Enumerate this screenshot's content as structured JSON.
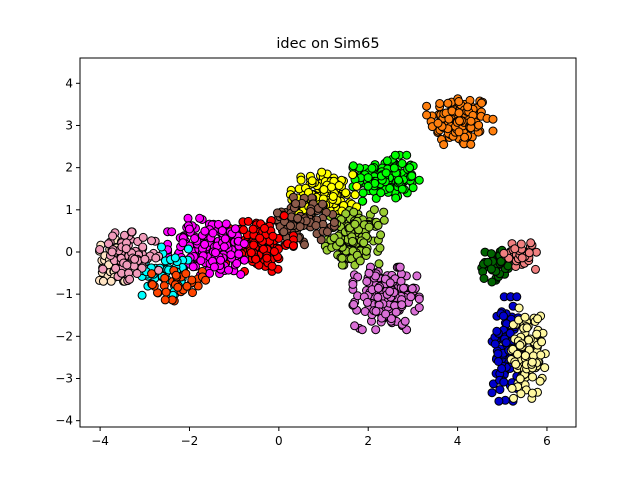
{
  "chart_data": {
    "type": "scatter",
    "title": "idec on Sim65",
    "xlabel": "",
    "ylabel": "",
    "xlim": [
      -4.45,
      6.65
    ],
    "ylim": [
      -4.15,
      4.6
    ],
    "xticks": [
      -4,
      -2,
      0,
      2,
      4,
      6
    ],
    "yticks": [
      -4,
      -3,
      -2,
      -1,
      0,
      1,
      2,
      3,
      4
    ],
    "grid": false,
    "legend": "none",
    "marker_edge_color": "#000000",
    "clusters": [
      {
        "color": "#ff7f0e",
        "center": [
          4.05,
          3.1
        ],
        "spread": [
          0.45,
          0.42
        ],
        "n": 130
      },
      {
        "color": "#00ff00",
        "center": [
          2.4,
          1.75
        ],
        "spread": [
          0.45,
          0.33
        ],
        "n": 150
      },
      {
        "color": "#ffff00",
        "center": [
          1.0,
          1.35
        ],
        "spread": [
          0.45,
          0.33
        ],
        "n": 130
      },
      {
        "color": "#9acd32",
        "center": [
          1.7,
          0.35
        ],
        "spread": [
          0.4,
          0.4
        ],
        "n": 140
      },
      {
        "color": "#8b5a4a",
        "center": [
          0.5,
          0.75
        ],
        "spread": [
          0.45,
          0.35
        ],
        "n": 90
      },
      {
        "color": "#da70d6",
        "center": [
          2.4,
          -1.1
        ],
        "spread": [
          0.45,
          0.45
        ],
        "n": 190
      },
      {
        "color": "#ff0000",
        "center": [
          -0.5,
          0.2
        ],
        "spread": [
          0.5,
          0.4
        ],
        "n": 140
      },
      {
        "color": "#ff00ff",
        "center": [
          -1.5,
          0.1
        ],
        "spread": [
          0.6,
          0.45
        ],
        "n": 180
      },
      {
        "color": "#00ffff",
        "center": [
          -2.45,
          -0.45
        ],
        "spread": [
          0.4,
          0.35
        ],
        "n": 60
      },
      {
        "color": "#ff4500",
        "center": [
          -2.3,
          -0.75
        ],
        "spread": [
          0.4,
          0.25
        ],
        "n": 35
      },
      {
        "color": "#ffe4c4",
        "center": [
          -3.6,
          -0.2
        ],
        "spread": [
          0.25,
          0.3
        ],
        "n": 60
      },
      {
        "color": "#f19cbb",
        "center": [
          -3.35,
          -0.1
        ],
        "spread": [
          0.4,
          0.35
        ],
        "n": 90
      },
      {
        "color": "#006400",
        "center": [
          4.85,
          -0.3
        ],
        "spread": [
          0.25,
          0.25
        ],
        "n": 45
      },
      {
        "color": "#f08080",
        "center": [
          5.4,
          -0.05
        ],
        "spread": [
          0.22,
          0.22
        ],
        "n": 45
      },
      {
        "color": "#0000cd",
        "center": [
          5.1,
          -2.3
        ],
        "spread": [
          0.2,
          0.75
        ],
        "n": 110
      },
      {
        "color": "#fff8a0",
        "center": [
          5.55,
          -2.4
        ],
        "spread": [
          0.25,
          0.65
        ],
        "n": 100
      }
    ]
  }
}
